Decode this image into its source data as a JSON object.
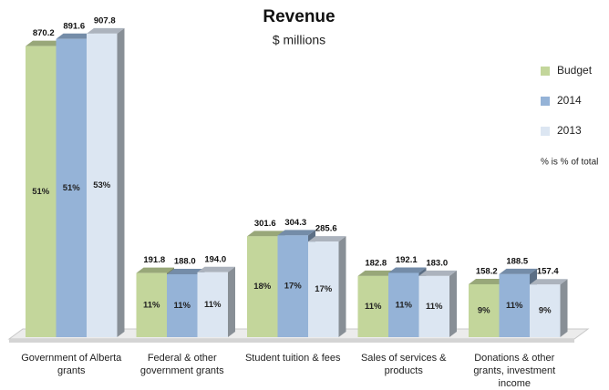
{
  "chart_data": {
    "type": "bar3d",
    "title": "Revenue",
    "subtitle": "$ millions",
    "annotation": "% is % of total",
    "categories": [
      "Government of Alberta grants",
      "Federal & other government grants",
      "Student tuition & fees",
      "Sales of services & products",
      "Donations & other grants, investment income"
    ],
    "series": [
      {
        "name": "Budget",
        "color": "#c3d69b",
        "values": [
          870.2,
          191.8,
          301.6,
          182.8,
          158.2
        ],
        "value_labels": [
          "870.2",
          "191.8",
          "301.6",
          "182.8",
          "158.2"
        ],
        "share_labels": [
          "51%",
          "11%",
          "18%",
          "11%",
          "9%"
        ]
      },
      {
        "name": "2014",
        "color": "#95b3d7",
        "values": [
          891.6,
          188.0,
          304.3,
          192.1,
          188.5
        ],
        "value_labels": [
          "891.6",
          "188.0",
          "304.3",
          "192.1",
          "188.5"
        ],
        "share_labels": [
          "51%",
          "11%",
          "17%",
          "11%",
          "11%"
        ]
      },
      {
        "name": "2013",
        "color": "#dce6f2",
        "values": [
          907.8,
          194.0,
          285.6,
          183.0,
          157.4
        ],
        "value_labels": [
          "907.8",
          "194.0",
          "285.6",
          "183.0",
          "157.4"
        ],
        "share_labels": [
          "53%",
          "11%",
          "17%",
          "11%",
          "9%"
        ]
      }
    ],
    "ylim": [
      0,
      1000
    ],
    "legend": "right"
  }
}
